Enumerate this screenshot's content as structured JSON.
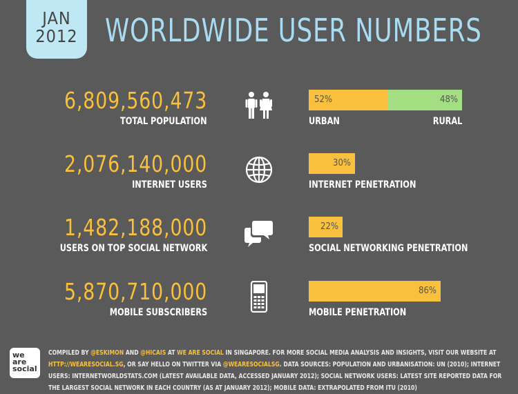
{
  "header": {
    "month": "JAN",
    "year": "2012",
    "title": "WORLDWIDE USER NUMBERS"
  },
  "chart_data": {
    "type": "bar",
    "title": "WORLDWIDE USER NUMBERS",
    "rows": [
      {
        "value": "6,809,560,473",
        "label": "TOTAL POPULATION",
        "icon": "people-icon",
        "split": {
          "urban": 52,
          "rural": 48,
          "urban_text": "52%",
          "rural_text": "48%",
          "urban_label": "URBAN",
          "rural_label": "RURAL"
        }
      },
      {
        "value": "2,076,140,000",
        "label": "INTERNET USERS",
        "icon": "globe-icon",
        "percent": 30,
        "percent_text": "30%",
        "bar_label": "INTERNET PENETRATION"
      },
      {
        "value": "1,482,188,000",
        "label": "USERS ON TOP SOCIAL NETWORK",
        "icon": "speech-bubbles-icon",
        "percent": 22,
        "percent_text": "22%",
        "bar_label": "SOCIAL NETWORKING PENETRATION"
      },
      {
        "value": "5,870,710,000",
        "label": "MOBILE SUBSCRIBERS",
        "icon": "mobile-phone-icon",
        "percent": 86,
        "percent_text": "86%",
        "bar_label": "MOBILE PENETRATION"
      }
    ],
    "colors": {
      "value": "#f8c03c",
      "bar": "#f8c03c",
      "rural": "#a4de82"
    }
  },
  "footer": {
    "logo": [
      "we",
      "are",
      "social"
    ],
    "text_parts": [
      {
        "t": "COMPILED BY ",
        "hl": false
      },
      {
        "t": "@ESKIMON",
        "hl": true
      },
      {
        "t": " AND ",
        "hl": false
      },
      {
        "t": "@HICAIS",
        "hl": true
      },
      {
        "t": " AT ",
        "hl": false
      },
      {
        "t": "WE ARE SOCIAL",
        "hl": true
      },
      {
        "t": " IN SINGAPORE. FOR MORE SOCIAL MEDIA ANALYSIS AND INSIGHTS, VISIT OUR WEBSITE AT ",
        "hl": false
      },
      {
        "t": "HTTP://WEARESOCIAL.SG",
        "hl": true
      },
      {
        "t": ", OR SAY HELLO ON TWITTER VIA ",
        "hl": false
      },
      {
        "t": "@WEARESOCIALSG",
        "hl": true
      },
      {
        "t": ". DATA SOURCES: POPULATION AND URBANISATION: UN (2010); INTERNET USERS: INTERNETWORLDSTATS.COM (LATEST AVAILABLE DATA, ACCESSED JANUARY 2012); SOCIAL NETWORK USERS: LATEST SITE REPORTED DATA FOR THE LARGEST SOCIAL NETWORK IN EACH COUNTRY (AS AT JANUARY 2012); MOBILE DATA: EXTRAPOLATED FROM ITU (2010)",
        "hl": false
      }
    ]
  }
}
